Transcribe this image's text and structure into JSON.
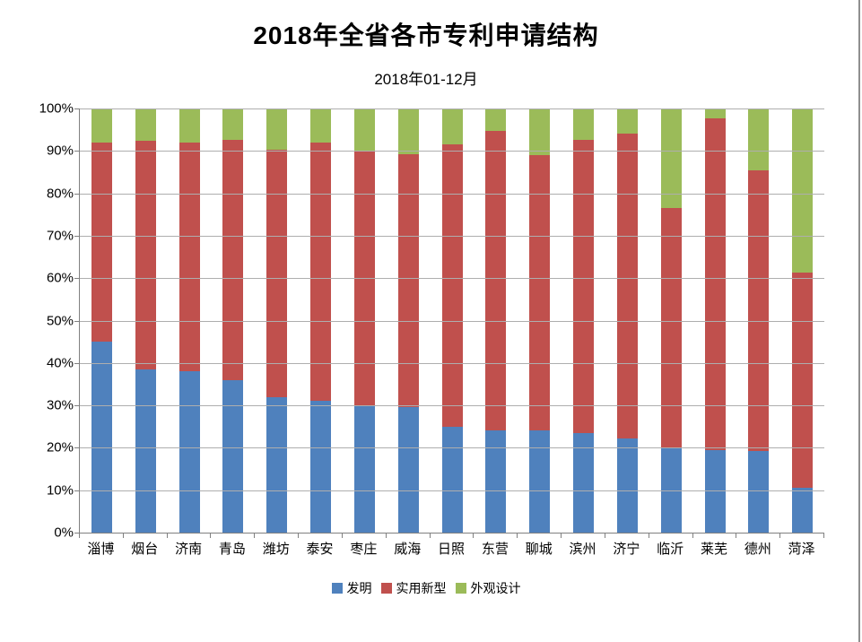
{
  "title": "2018年全省各市专利申请结构",
  "subtitle": "2018年01-12月",
  "chart_data": {
    "type": "bar",
    "stacked": true,
    "percent_stacked": true,
    "title": "2018年全省各市专利申请结构",
    "subtitle": "2018年01-12月",
    "categories": [
      "淄博",
      "烟台",
      "济南",
      "青岛",
      "潍坊",
      "泰安",
      "枣庄",
      "威海",
      "日照",
      "东营",
      "聊城",
      "滨州",
      "济宁",
      "临沂",
      "莱芜",
      "德州",
      "菏泽"
    ],
    "series": [
      {
        "name": "发明",
        "key": "invention",
        "color": "#4F81BD",
        "values": [
          45.0,
          38.5,
          38.0,
          36.0,
          32.0,
          31.0,
          30.0,
          29.5,
          25.0,
          24.0,
          24.0,
          23.5,
          22.3,
          20.0,
          19.5,
          19.2,
          10.5
        ]
      },
      {
        "name": "实用新型",
        "key": "utility-model",
        "color": "#C0504D",
        "values": [
          47.0,
          53.8,
          54.0,
          56.7,
          58.3,
          61.0,
          59.8,
          59.8,
          66.5,
          70.8,
          65.0,
          69.1,
          71.7,
          56.6,
          78.2,
          66.2,
          50.9
        ]
      },
      {
        "name": "外观设计",
        "key": "design",
        "color": "#9BBB59",
        "values": [
          8.0,
          7.7,
          8.0,
          7.3,
          9.7,
          8.0,
          10.2,
          10.7,
          8.5,
          5.2,
          11.0,
          7.4,
          6.0,
          23.4,
          2.3,
          14.6,
          38.6
        ]
      }
    ],
    "xlabel": "",
    "ylabel": "",
    "ylim": [
      0,
      100
    ],
    "yticks": [
      "0%",
      "10%",
      "20%",
      "30%",
      "40%",
      "50%",
      "60%",
      "70%",
      "80%",
      "90%",
      "100%"
    ],
    "grid": true,
    "legend_position": "bottom",
    "axis_color": "#808080",
    "gridline_color": "#aeaeae"
  }
}
